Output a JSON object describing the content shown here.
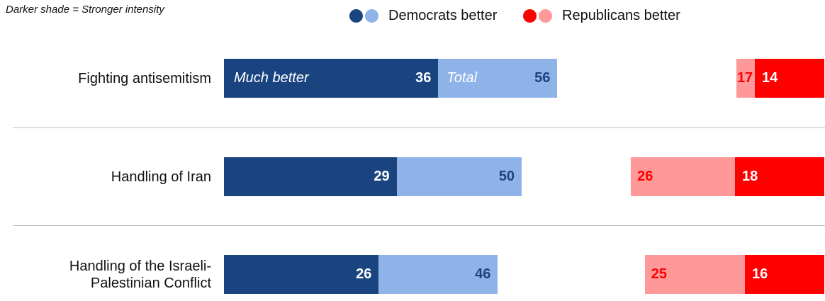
{
  "note": "Darker shade = Stronger intensity",
  "legend": [
    {
      "label": "Democrats better",
      "dark": "#1a4480",
      "light": "#8fb3e8"
    },
    {
      "label": "Republicans better",
      "dark": "#ff0000",
      "light": "#ff9999"
    }
  ],
  "annotations": {
    "much_better": "Much better",
    "total": "Total"
  },
  "chart_data": {
    "type": "bar",
    "categories": [
      "Fighting antisemitism",
      "Handling of Iran",
      "Handling of the Israeli-Palestinian Conflict"
    ],
    "series": [
      {
        "name": "Democrats better (Much better)",
        "values": [
          36,
          29,
          26
        ]
      },
      {
        "name": "Democrats better (Total)",
        "values": [
          56,
          50,
          46
        ]
      },
      {
        "name": "Republicans better (Total)",
        "values": [
          17,
          26,
          25
        ]
      },
      {
        "name": "Republicans better (Much better)",
        "values": [
          14,
          18,
          16
        ]
      }
    ],
    "legend_position": "top-center",
    "colors": {
      "dem_dark": "#1a4480",
      "dem_light": "#8fb3e8",
      "rep_dark": "#ff0000",
      "rep_light": "#ff9999"
    }
  }
}
